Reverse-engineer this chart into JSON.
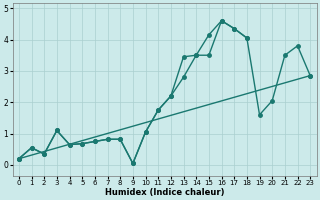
{
  "xlabel": "Humidex (Indice chaleur)",
  "bg_color": "#cceaea",
  "grid_color": "#aacfcf",
  "line_color": "#1a7870",
  "xlim": [
    -0.5,
    23.5
  ],
  "ylim": [
    -0.35,
    5.15
  ],
  "xticks": [
    0,
    1,
    2,
    3,
    4,
    5,
    6,
    7,
    8,
    9,
    10,
    11,
    12,
    13,
    14,
    15,
    16,
    17,
    18,
    19,
    20,
    21,
    22,
    23
  ],
  "yticks": [
    0,
    1,
    2,
    3,
    4,
    5
  ],
  "line1_x": [
    0,
    1,
    2,
    3,
    4,
    5,
    6,
    7,
    8,
    9,
    10,
    11,
    12,
    13,
    14,
    15,
    16,
    17,
    18
  ],
  "line1_y": [
    0.2,
    0.55,
    0.35,
    1.1,
    0.65,
    0.68,
    0.75,
    0.82,
    0.82,
    0.05,
    1.05,
    1.75,
    2.2,
    3.45,
    3.5,
    4.15,
    4.6,
    4.35,
    4.05
  ],
  "line2_x": [
    0,
    1,
    2,
    3,
    4,
    5,
    6,
    7,
    8,
    9,
    10,
    11,
    12,
    13,
    14,
    15,
    16,
    17,
    18,
    19,
    20,
    21,
    22,
    23
  ],
  "line2_y": [
    0.2,
    0.55,
    0.35,
    1.1,
    0.65,
    0.68,
    0.75,
    0.82,
    0.82,
    0.05,
    1.05,
    1.75,
    2.2,
    2.8,
    3.5,
    3.5,
    4.6,
    4.35,
    4.05,
    1.6,
    2.05,
    3.5,
    3.8,
    2.85
  ],
  "line3_x": [
    0,
    23
  ],
  "line3_y": [
    0.2,
    2.85
  ],
  "marker_size": 2.5,
  "line_width": 1.0
}
